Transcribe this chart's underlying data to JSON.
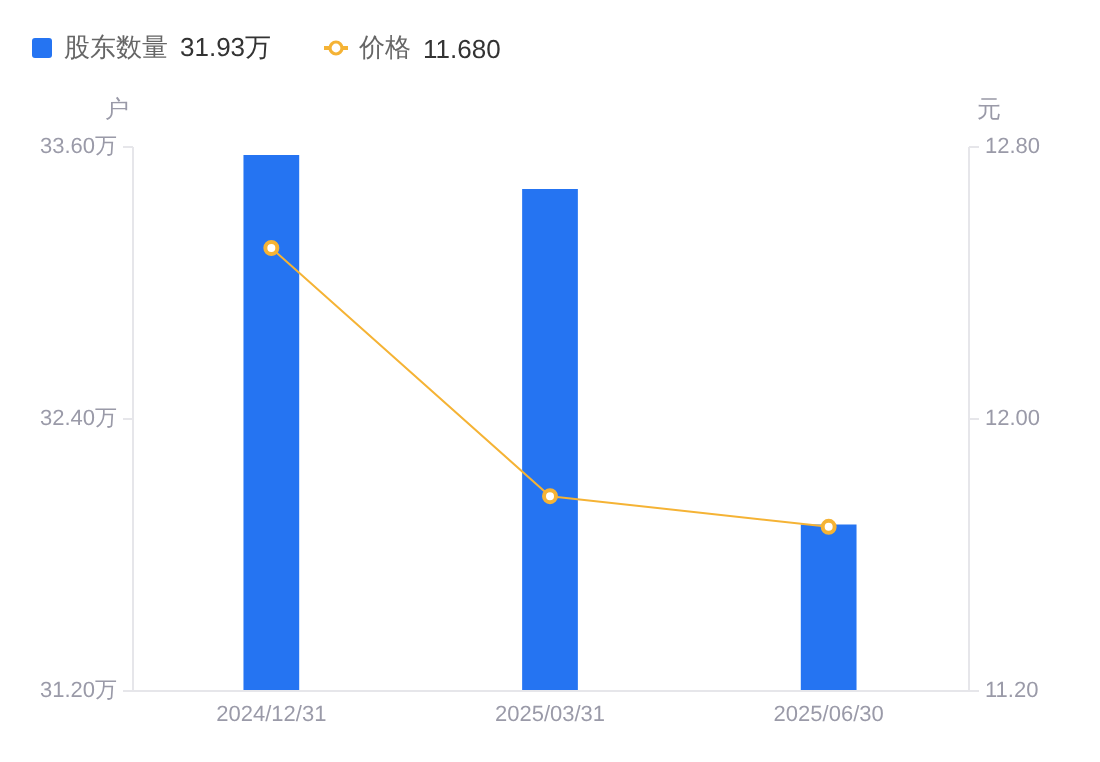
{
  "chart_data": {
    "type": "bar",
    "categories": [
      "2024/12/31",
      "2025/03/31",
      "2025/06/30"
    ],
    "ylabel": "户",
    "y2label": "元",
    "series": [
      {
        "name": "股东数量",
        "color": "#2574f2",
        "values": [
          33.56,
          33.41,
          31.93
        ]
      },
      {
        "name": "价格",
        "type": "line",
        "axis": "y2",
        "color": "#f5b335",
        "marker": "circle",
        "values": [
          12.5,
          11.77,
          11.68
        ]
      }
    ],
    "ylim": [
      31.2,
      33.6
    ],
    "yticks": [
      {
        "value": 31.2,
        "label": "31.20万"
      },
      {
        "value": 32.4,
        "label": "32.40万"
      },
      {
        "value": 33.6,
        "label": "33.60万"
      }
    ],
    "y2lim": [
      11.2,
      12.8
    ],
    "y2ticks": [
      {
        "value": 11.2,
        "label": "11.20"
      },
      {
        "value": 12.0,
        "label": "12.00"
      },
      {
        "value": 12.8,
        "label": "12.80"
      }
    ],
    "annotations": [
      "31.93万",
      "11.680"
    ],
    "legend": "top left",
    "grid": false
  }
}
